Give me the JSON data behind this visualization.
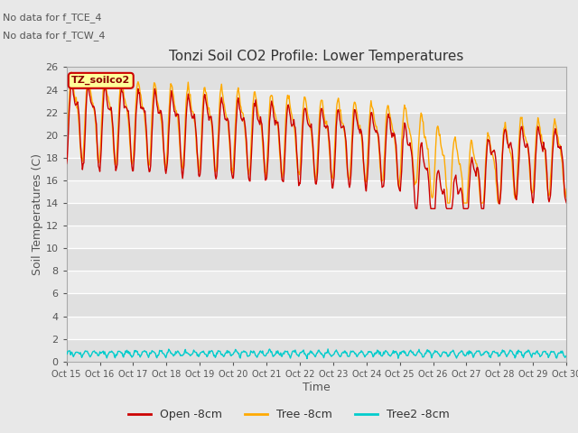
{
  "title": "Tonzi Soil CO2 Profile: Lower Temperatures",
  "xlabel": "Time",
  "ylabel": "Soil Temperatures (C)",
  "subtitle_lines": [
    "No data for f_TCE_4",
    "No data for f_TCW_4"
  ],
  "inset_label": "TZ_soilco2",
  "ylim": [
    0,
    26
  ],
  "yticks": [
    0,
    2,
    4,
    6,
    8,
    10,
    12,
    14,
    16,
    18,
    20,
    22,
    24,
    26
  ],
  "xtick_labels": [
    "Oct 15",
    "Oct 16",
    "Oct 17",
    "Oct 18",
    "Oct 19",
    "Oct 20",
    "Oct 21",
    "Oct 22",
    "Oct 23",
    "Oct 24",
    "Oct 25",
    "Oct 26",
    "Oct 27",
    "Oct 28",
    "Oct 29",
    "Oct 30"
  ],
  "legend_entries": [
    "Open -8cm",
    "Tree -8cm",
    "Tree2 -8cm"
  ],
  "line_colors": [
    "#cc0000",
    "#ffaa00",
    "#00cccc"
  ],
  "background_color": "#e8e8e8",
  "plot_bg_color": "#f0f0f0",
  "grid_color": "#ffffff",
  "n_points": 720,
  "figsize": [
    6.4,
    4.8
  ],
  "dpi": 100
}
